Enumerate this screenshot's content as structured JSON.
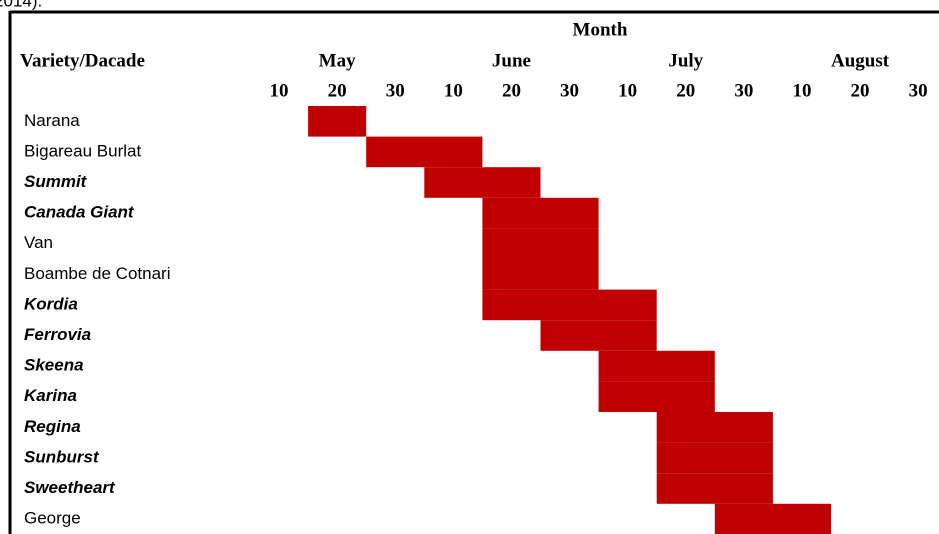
{
  "caption": "2014).",
  "header": {
    "month": "Month",
    "variety": "Variety/Dacade",
    "months": [
      "May",
      "June",
      "July",
      "August"
    ],
    "decades": [
      10,
      20,
      30,
      10,
      20,
      30,
      10,
      20,
      30,
      10,
      20,
      30
    ]
  },
  "rows": [
    {
      "name": "Narana",
      "style": "normal",
      "span": [
        1,
        1
      ]
    },
    {
      "name": "Bigareau Burlat",
      "style": "normal",
      "span": [
        2,
        3
      ]
    },
    {
      "name": "Summit",
      "style": "bold-italic",
      "span": [
        3,
        4
      ]
    },
    {
      "name": "Canada Giant",
      "style": "bold-italic",
      "span": [
        4,
        5
      ]
    },
    {
      "name": "Van",
      "style": "normal",
      "span": [
        4,
        5
      ]
    },
    {
      "name": "Boambe de Cotnari",
      "style": "small",
      "span": [
        4,
        5
      ]
    },
    {
      "name": "Kordia",
      "style": "bold-italic",
      "span": [
        4,
        6
      ]
    },
    {
      "name": "Ferrovia",
      "style": "bold-italic",
      "span": [
        5,
        6
      ]
    },
    {
      "name": "Skeena",
      "style": "bold-italic",
      "span": [
        6,
        7
      ]
    },
    {
      "name": "Karina",
      "style": "bold-italic",
      "span": [
        6,
        7
      ]
    },
    {
      "name": "Regina",
      "style": "bold-italic",
      "span": [
        7,
        8
      ]
    },
    {
      "name": "Sunburst",
      "style": "bold-italic",
      "span": [
        7,
        8
      ]
    },
    {
      "name": "Sweetheart",
      "style": "bold-italic",
      "span": [
        7,
        8
      ]
    },
    {
      "name": "George",
      "style": "normal",
      "span": [
        8,
        9
      ]
    }
  ],
  "fill_color": "#c00000"
}
